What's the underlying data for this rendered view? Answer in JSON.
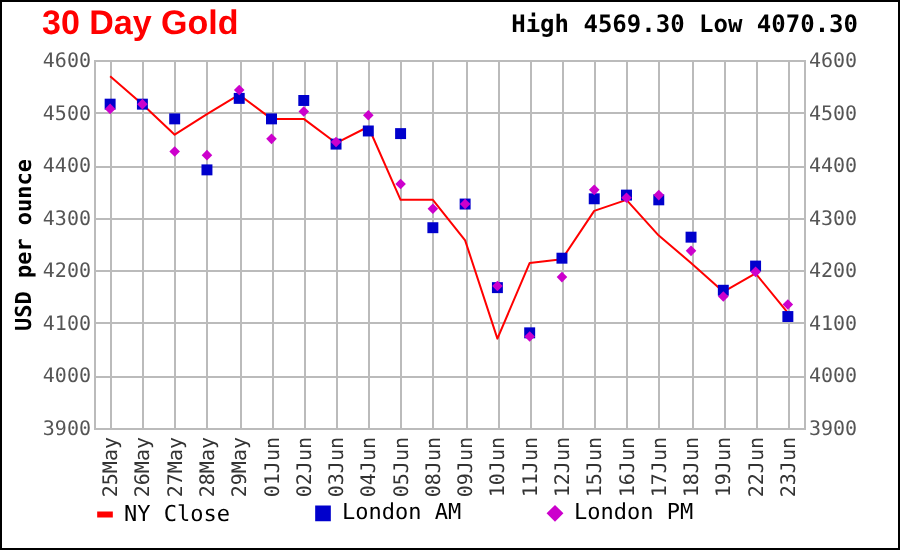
{
  "chart_data": {
    "type": "line",
    "title": "30 Day Gold",
    "subtitle": "High 4569.30 Low 4070.30",
    "ylabel": "USD per ounce",
    "categories": [
      "25May",
      "26May",
      "27May",
      "28May",
      "29May",
      "01Jun",
      "02Jun",
      "03Jun",
      "04Jun",
      "05Jun",
      "08Jun",
      "09Jun",
      "10Jun",
      "11Jun",
      "12Jun",
      "15Jun",
      "16Jun",
      "17Jun",
      "18Jun",
      "19Jun",
      "22Jun",
      "23Jun"
    ],
    "series": [
      {
        "name": "NY Close",
        "color": "#ff0000",
        "marker": "none",
        "values": [
          4569,
          4516,
          4458,
          4497,
          4534,
          4488,
          4488,
          4442,
          4473,
          4334,
          4334,
          4257,
          4070,
          4214,
          4221,
          4313,
          4334,
          4266,
          4214,
          4159,
          4194,
          4119
        ]
      },
      {
        "name": "London AM",
        "color": "#0000cc",
        "type": "scatter",
        "marker": "square",
        "values": [
          4516,
          4516,
          4488,
          4391,
          4527,
          4488,
          4523,
          4440,
          4465,
          4460,
          4281,
          4326,
          4167,
          4081,
          4223,
          4336,
          4343,
          4334,
          4263,
          4162,
          4208,
          4112
        ]
      },
      {
        "name": "London PM",
        "color": "#cc00cc",
        "type": "scatter",
        "marker": "diamond",
        "values": [
          4507,
          4516,
          4426,
          4419,
          4543,
          4450,
          4502,
          4444,
          4495,
          4364,
          4317,
          4326,
          4170,
          4074,
          4187,
          4353,
          4338,
          4343,
          4237,
          4150,
          4197,
          4135
        ]
      }
    ],
    "ylim": [
      3900,
      4600
    ],
    "yticks": [
      3900,
      4000,
      4100,
      4200,
      4300,
      4400,
      4500,
      4600
    ],
    "y2lim": [
      3900,
      4600
    ],
    "y2ticks": [
      3900,
      4000,
      4100,
      4200,
      4300,
      4400,
      4500,
      4600
    ],
    "grid": true,
    "legend": "bottom"
  }
}
